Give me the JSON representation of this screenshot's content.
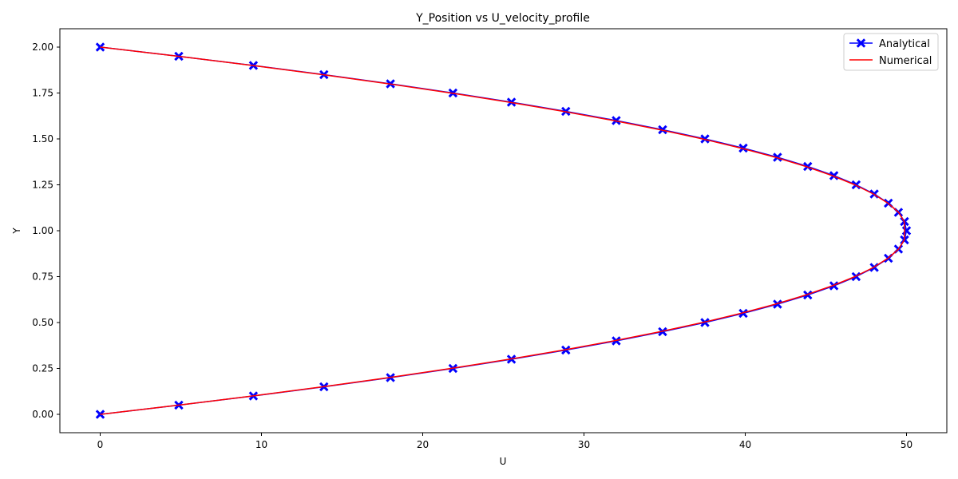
{
  "chart_data": {
    "type": "line",
    "title": "Y_Position vs U_velocity_profile",
    "xlabel": "U",
    "ylabel": "Y",
    "xlim": [
      -2.5,
      52.5
    ],
    "ylim": [
      -0.1,
      2.1
    ],
    "xticks": [
      0,
      10,
      20,
      30,
      40,
      50
    ],
    "xtick_labels": [
      "0",
      "10",
      "20",
      "30",
      "40",
      "50"
    ],
    "yticks": [
      0.0,
      0.25,
      0.5,
      0.75,
      1.0,
      1.25,
      1.5,
      1.75,
      2.0
    ],
    "ytick_labels": [
      "0.00",
      "0.25",
      "0.50",
      "0.75",
      "1.00",
      "1.25",
      "1.50",
      "1.75",
      "2.00"
    ],
    "grid": false,
    "legend_position": "top-right",
    "series": [
      {
        "name": "Analytical",
        "color": "#0000ff",
        "marker": "X",
        "style": "solid",
        "points": [
          [
            0.0,
            0.0
          ],
          [
            4.875,
            0.05
          ],
          [
            9.5,
            0.1
          ],
          [
            13.875,
            0.15
          ],
          [
            18.0,
            0.2
          ],
          [
            21.875,
            0.25
          ],
          [
            25.5,
            0.3
          ],
          [
            28.875,
            0.35
          ],
          [
            32.0,
            0.4
          ],
          [
            34.875,
            0.45
          ],
          [
            37.5,
            0.5
          ],
          [
            39.875,
            0.55
          ],
          [
            42.0,
            0.6
          ],
          [
            43.875,
            0.65
          ],
          [
            45.5,
            0.7
          ],
          [
            46.875,
            0.75
          ],
          [
            48.0,
            0.8
          ],
          [
            48.875,
            0.85
          ],
          [
            49.5,
            0.9
          ],
          [
            49.875,
            0.95
          ],
          [
            50.0,
            1.0
          ],
          [
            49.875,
            1.05
          ],
          [
            49.5,
            1.1
          ],
          [
            48.875,
            1.15
          ],
          [
            48.0,
            1.2
          ],
          [
            46.875,
            1.25
          ],
          [
            45.5,
            1.3
          ],
          [
            43.875,
            1.35
          ],
          [
            42.0,
            1.4
          ],
          [
            39.875,
            1.45
          ],
          [
            37.5,
            1.5
          ],
          [
            34.875,
            1.55
          ],
          [
            32.0,
            1.6
          ],
          [
            28.875,
            1.65
          ],
          [
            25.5,
            1.7
          ],
          [
            21.875,
            1.75
          ],
          [
            18.0,
            1.8
          ],
          [
            13.875,
            1.85
          ],
          [
            9.5,
            1.9
          ],
          [
            4.875,
            1.95
          ],
          [
            0.0,
            2.0
          ]
        ]
      },
      {
        "name": "Numerical",
        "color": "#ff0000",
        "marker": "none",
        "style": "solid",
        "points": [
          [
            0.0,
            0.0
          ],
          [
            4.84,
            0.05
          ],
          [
            9.44,
            0.1
          ],
          [
            13.79,
            0.15
          ],
          [
            17.89,
            0.2
          ],
          [
            21.75,
            0.25
          ],
          [
            25.36,
            0.3
          ],
          [
            28.72,
            0.35
          ],
          [
            31.84,
            0.4
          ],
          [
            34.72,
            0.45
          ],
          [
            37.35,
            0.5
          ],
          [
            39.73,
            0.55
          ],
          [
            41.87,
            0.6
          ],
          [
            43.76,
            0.65
          ],
          [
            45.4,
            0.7
          ],
          [
            46.8,
            0.75
          ],
          [
            47.95,
            0.8
          ],
          [
            48.85,
            0.85
          ],
          [
            49.51,
            0.9
          ],
          [
            49.86,
            0.95
          ],
          [
            49.88,
            1.0
          ],
          [
            49.86,
            1.05
          ],
          [
            49.51,
            1.1
          ],
          [
            48.85,
            1.15
          ],
          [
            47.95,
            1.2
          ],
          [
            46.8,
            1.25
          ],
          [
            45.4,
            1.3
          ],
          [
            43.76,
            1.35
          ],
          [
            41.87,
            1.4
          ],
          [
            39.73,
            1.45
          ],
          [
            37.35,
            1.5
          ],
          [
            34.72,
            1.55
          ],
          [
            31.84,
            1.6
          ],
          [
            28.72,
            1.65
          ],
          [
            25.36,
            1.7
          ],
          [
            21.75,
            1.75
          ],
          [
            17.89,
            1.8
          ],
          [
            13.79,
            1.85
          ],
          [
            9.44,
            1.9
          ],
          [
            4.84,
            1.95
          ],
          [
            0.0,
            2.0
          ]
        ]
      }
    ]
  }
}
